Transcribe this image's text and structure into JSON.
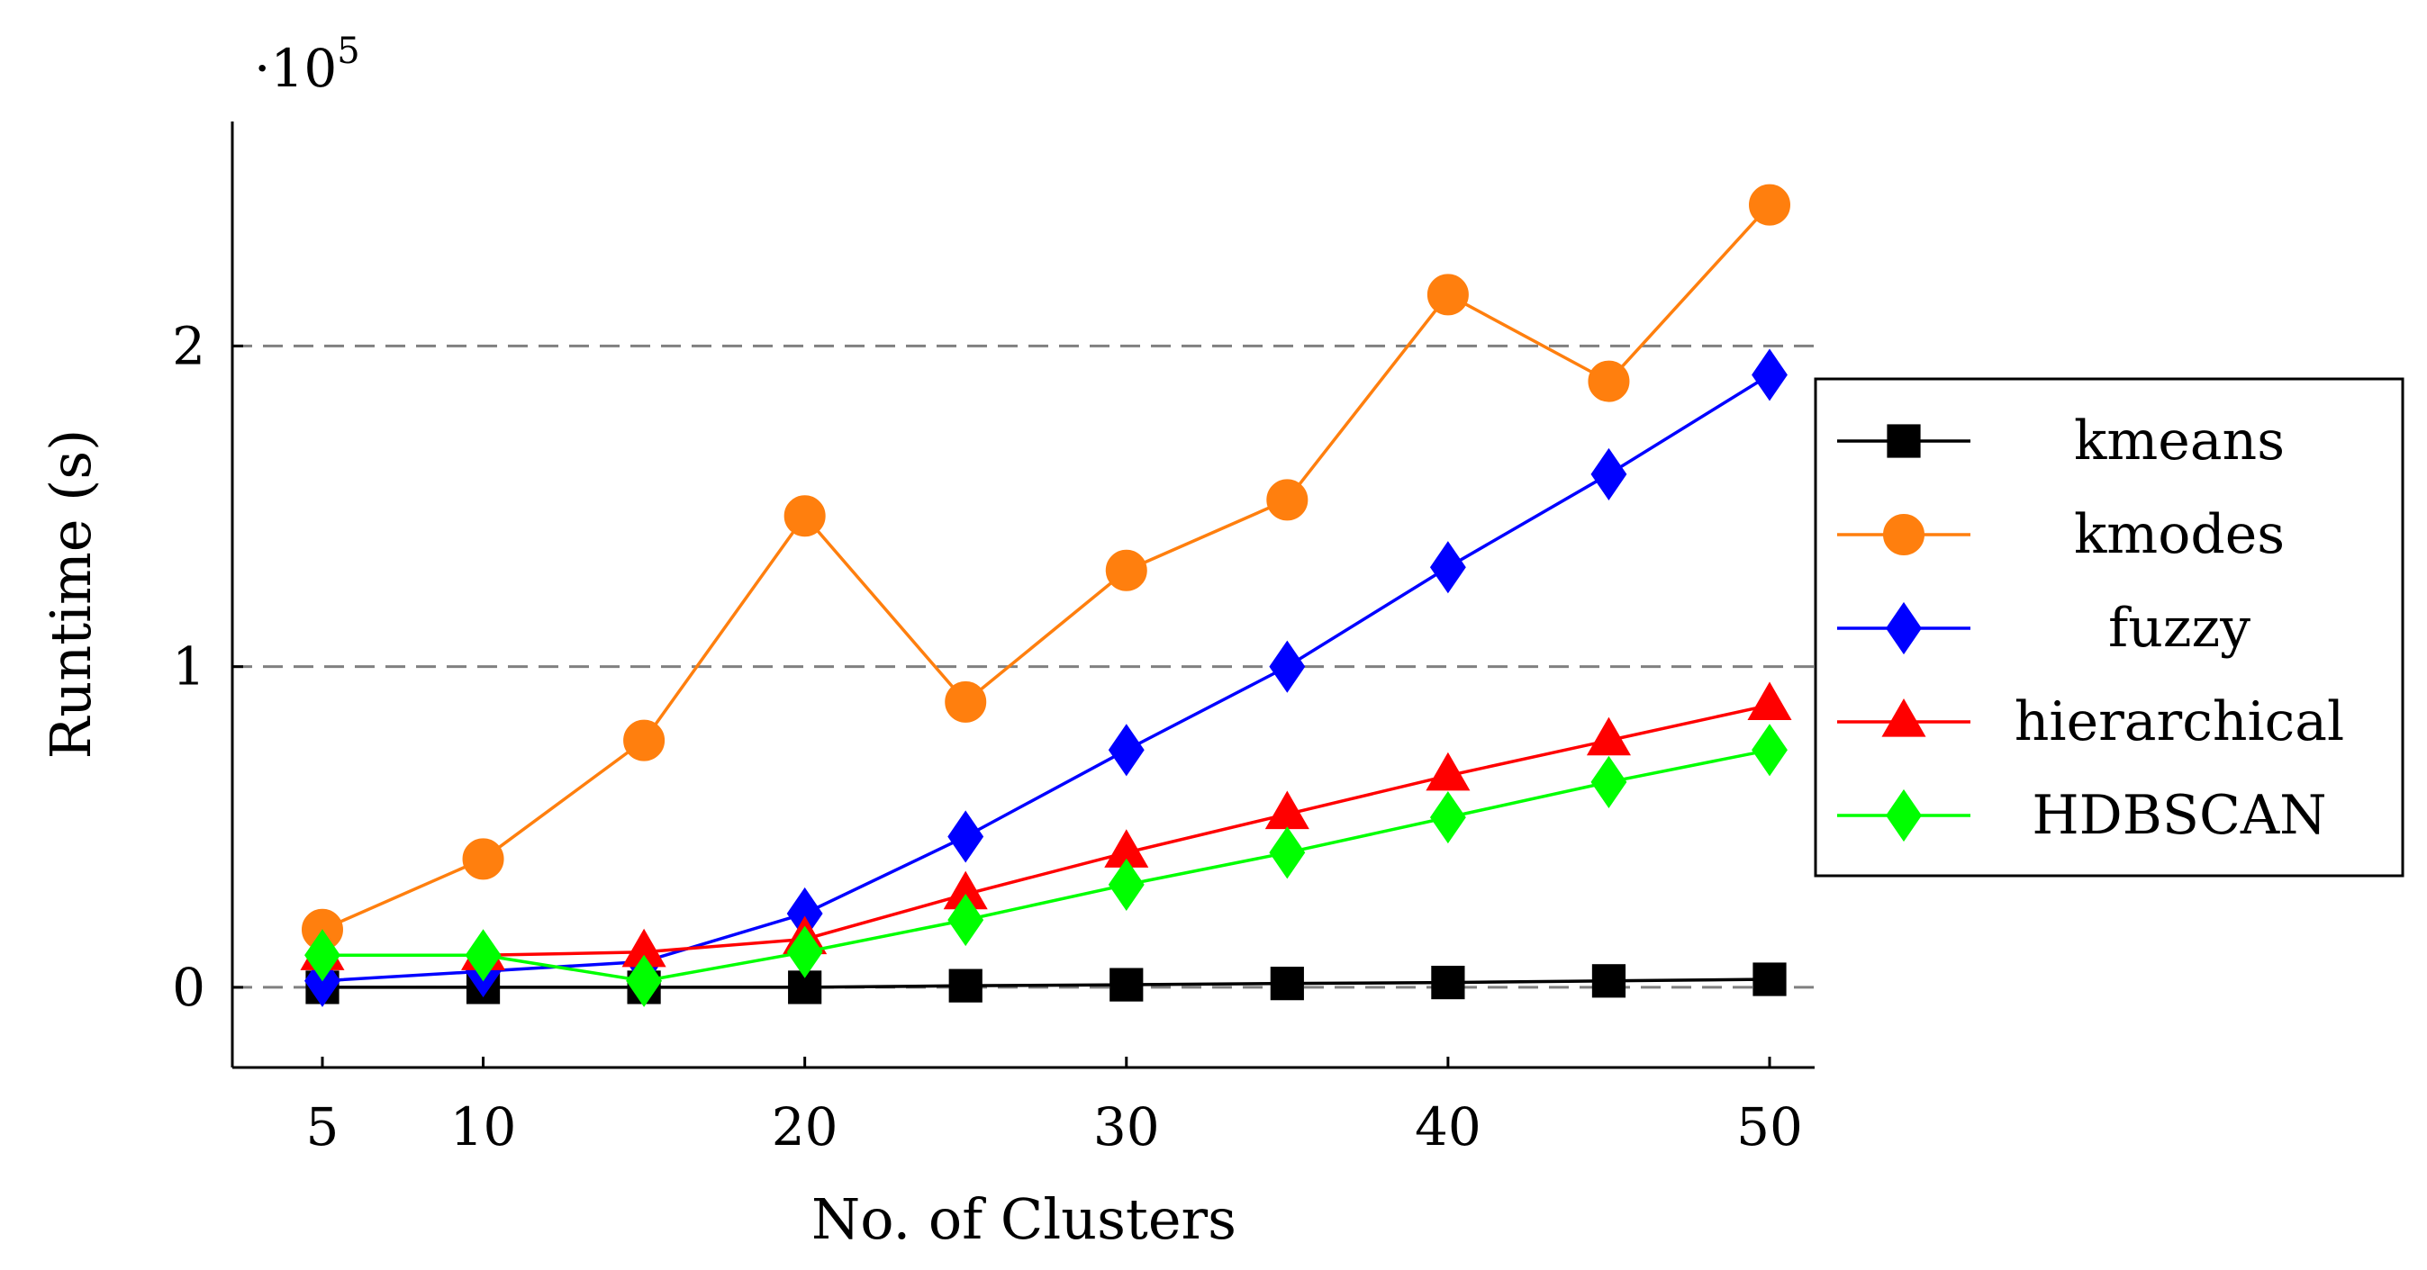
{
  "chart_data": {
    "type": "line",
    "title": "",
    "xlabel": "No. of Clusters",
    "ylabel": "Runtime (s)",
    "y_multiplier": {
      "base": "·10",
      "exponent": "5"
    },
    "x": [
      5,
      10,
      15,
      20,
      25,
      30,
      35,
      40,
      45,
      50
    ],
    "xticks": [
      5,
      10,
      20,
      30,
      40,
      50
    ],
    "yticks": [
      0,
      1,
      2
    ],
    "xlim": [
      2.2,
      51.4
    ],
    "ylim": [
      -0.25,
      2.7
    ],
    "grid": "horizontal dashed",
    "legend_position": "right",
    "series": [
      {
        "name": "kmeans",
        "color": "#000000",
        "marker": "square",
        "values": [
          0.0,
          0.0,
          0.0,
          0.0,
          0.005,
          0.008,
          0.012,
          0.015,
          0.02,
          0.025
        ]
      },
      {
        "name": "kmodes",
        "color": "#ff7f0e",
        "marker": "circle",
        "values": [
          0.18,
          0.4,
          0.77,
          1.47,
          0.89,
          1.3,
          1.52,
          2.16,
          1.89,
          2.44
        ]
      },
      {
        "name": "fuzzy",
        "color": "#0000ff",
        "marker": "diamond",
        "values": [
          0.02,
          0.05,
          0.08,
          0.23,
          0.47,
          0.74,
          1.0,
          1.31,
          1.6,
          1.91
        ]
      },
      {
        "name": "hierarchical",
        "color": "#ff0000",
        "marker": "triangle",
        "values": [
          0.1,
          0.1,
          0.11,
          0.15,
          0.29,
          0.42,
          0.54,
          0.66,
          0.77,
          0.88
        ]
      },
      {
        "name": "HDBSCAN",
        "color": "#00ff00",
        "marker": "diamond",
        "values": [
          0.1,
          0.1,
          0.02,
          0.11,
          0.21,
          0.32,
          0.42,
          0.53,
          0.64,
          0.74
        ]
      }
    ]
  }
}
